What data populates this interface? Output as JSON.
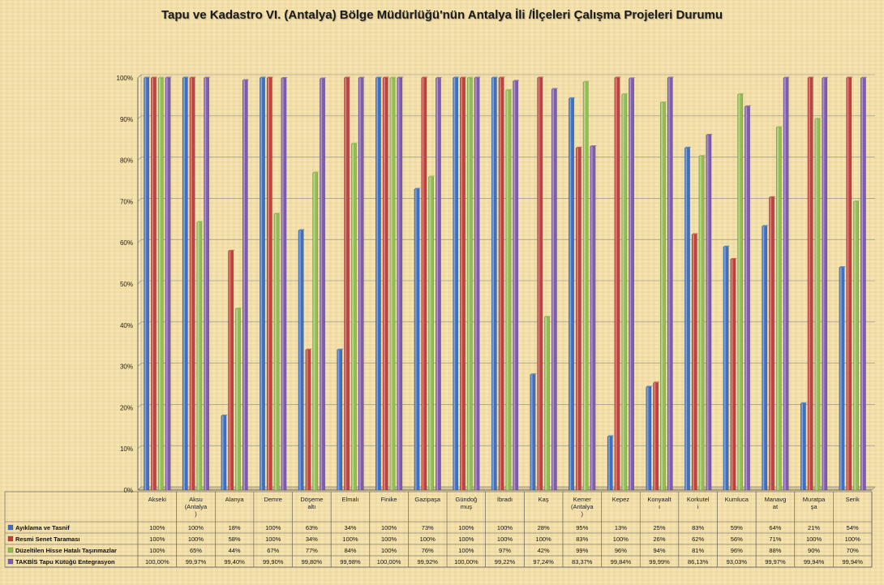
{
  "chart_data": {
    "type": "bar",
    "title": "Tapu ve Kadastro VI. (Antalya) Bölge Müdürlüğü'nün Antalya İli /İlçeleri Çalışma Projeleri Durumu",
    "ylim": [
      0,
      100
    ],
    "yticks": [
      "0%",
      "10%",
      "20%",
      "30%",
      "40%",
      "50%",
      "60%",
      "70%",
      "80%",
      "90%",
      "100%"
    ],
    "grid": true,
    "legend": "bottom-table",
    "categories": [
      [
        "Akseki"
      ],
      [
        "Aksu",
        "(Antalya",
        ")"
      ],
      [
        "Alanya"
      ],
      [
        "Demre"
      ],
      [
        "Döşeme",
        "altı"
      ],
      [
        "Elmalı"
      ],
      [
        "Finike"
      ],
      [
        "Gazipaşa"
      ],
      [
        "Gündoğ",
        "muş"
      ],
      [
        "İbradı"
      ],
      [
        "Kaş"
      ],
      [
        "Kemer",
        "(Antalya",
        ")"
      ],
      [
        "Kepez"
      ],
      [
        "Konyaalt",
        "ı"
      ],
      [
        "Korkutel",
        "i"
      ],
      [
        "Kumluca"
      ],
      [
        "Manavg",
        "at"
      ],
      [
        "Muratpa",
        "şa"
      ],
      [
        "Serik"
      ]
    ],
    "series": [
      {
        "name": "Ayıklama ve Tasnif",
        "color": "#3f6fc0",
        "values": [
          100,
          100,
          18,
          100,
          63,
          34,
          100,
          73,
          100,
          100,
          28,
          95,
          13,
          25,
          83,
          59,
          64,
          21,
          54
        ],
        "labels": [
          "100%",
          "100%",
          "18%",
          "100%",
          "63%",
          "34%",
          "100%",
          "73%",
          "100%",
          "100%",
          "28%",
          "95%",
          "13%",
          "25%",
          "83%",
          "59%",
          "64%",
          "21%",
          "54%"
        ]
      },
      {
        "name": "Resmi Senet Taraması",
        "color": "#c0413d",
        "values": [
          100,
          100,
          58,
          100,
          34,
          100,
          100,
          100,
          100,
          100,
          100,
          83,
          100,
          26,
          62,
          56,
          71,
          100,
          100
        ],
        "labels": [
          "100%",
          "100%",
          "58%",
          "100%",
          "34%",
          "100%",
          "100%",
          "100%",
          "100%",
          "100%",
          "100%",
          "83%",
          "100%",
          "26%",
          "62%",
          "56%",
          "71%",
          "100%",
          "100%"
        ]
      },
      {
        "name": "Düzeltilen Hisse Hatalı Taşınmazlar",
        "color": "#92bd52",
        "values": [
          100,
          65,
          44,
          67,
          77,
          84,
          100,
          76,
          100,
          97,
          42,
          99,
          96,
          94,
          81,
          96,
          88,
          90,
          70
        ],
        "labels": [
          "100%",
          "65%",
          "44%",
          "67%",
          "77%",
          "84%",
          "100%",
          "76%",
          "100%",
          "97%",
          "42%",
          "99%",
          "96%",
          "94%",
          "81%",
          "96%",
          "88%",
          "90%",
          "70%"
        ]
      },
      {
        "name": "TAKBİS Tapu Kütüğü Entegrasyon",
        "color": "#7d5bae",
        "values": [
          100,
          99.97,
          99.4,
          99.9,
          99.8,
          99.98,
          100,
          99.92,
          100,
          99.22,
          97.24,
          83.37,
          99.84,
          99.99,
          86.13,
          93.03,
          99.97,
          99.94,
          99.94
        ],
        "labels": [
          "100,00%",
          "99,97%",
          "99,40%",
          "99,90%",
          "99,80%",
          "99,98%",
          "100,00%",
          "99,92%",
          "100,00%",
          "99,22%",
          "97,24%",
          "83,37%",
          "99,84%",
          "99,99%",
          "86,13%",
          "93,03%",
          "99,97%",
          "99,94%",
          "99,94%"
        ]
      }
    ]
  }
}
